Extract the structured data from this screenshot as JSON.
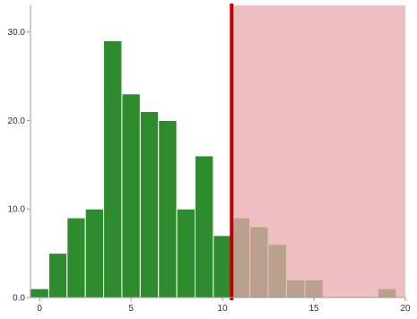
{
  "chart_data": {
    "type": "bar",
    "bin_width": 1,
    "bins": [
      {
        "x": 0,
        "value": 1
      },
      {
        "x": 1,
        "value": 5
      },
      {
        "x": 2,
        "value": 9
      },
      {
        "x": 3,
        "value": 10
      },
      {
        "x": 4,
        "value": 29
      },
      {
        "x": 5,
        "value": 23
      },
      {
        "x": 6,
        "value": 21
      },
      {
        "x": 7,
        "value": 20
      },
      {
        "x": 8,
        "value": 10
      },
      {
        "x": 9,
        "value": 16
      },
      {
        "x": 10,
        "value": 7
      },
      {
        "x": 11,
        "value": 9
      },
      {
        "x": 12,
        "value": 8
      },
      {
        "x": 13,
        "value": 6
      },
      {
        "x": 14,
        "value": 2
      },
      {
        "x": 15,
        "value": 2
      },
      {
        "x": 19,
        "value": 1
      }
    ],
    "xlim": [
      -0.5,
      20
    ],
    "ylim": [
      0,
      33
    ],
    "x_ticks": [
      {
        "value": 0,
        "label": "0"
      },
      {
        "value": 5,
        "label": "5"
      },
      {
        "value": 10,
        "label": "10"
      },
      {
        "value": 15,
        "label": "15"
      },
      {
        "value": 20,
        "label": "20"
      }
    ],
    "y_ticks": [
      {
        "value": 0,
        "label": "0.0"
      },
      {
        "value": 10,
        "label": "10.0"
      },
      {
        "value": 20,
        "label": "20.0"
      },
      {
        "value": 30,
        "label": "30.0"
      }
    ],
    "threshold": 10.5,
    "title": "",
    "xlabel": "",
    "ylabel": "",
    "grid": false,
    "colors": {
      "bar_fill": "#2e8b2e",
      "bar_stroke": "#ffffff",
      "shaded_region": "#e8a8ad",
      "shaded_opacity": 0.75,
      "threshold_line": "#c00000",
      "axis": "#999999",
      "tick_text": "#333333"
    }
  }
}
